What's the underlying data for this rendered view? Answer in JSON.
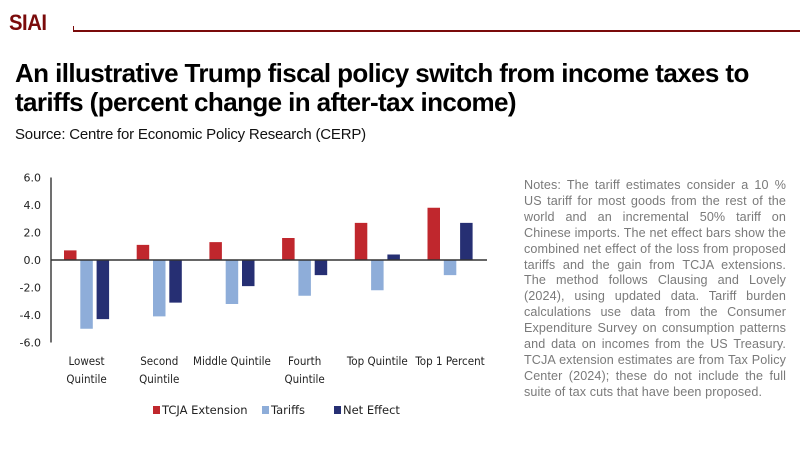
{
  "header": {
    "logo_text": "SIAI",
    "brand_color": "#7a0a0a"
  },
  "title": "An illustrative Trump fiscal policy switch from income taxes to tariffs (percent change in after-tax income)",
  "source": "Source: Centre for Economic Policy Research (CERP)",
  "notes": "Notes: The tariff estimates consider a 10 % US tariff for most goods from the rest of the world and an incremental 50% tariff on Chinese imports. The net effect bars show the combined net effect of the loss from proposed tariffs and the gain from TCJA extensions. The method follows Clausing and Lovely (2024), using updated data. Tariff burden calculations use data from the Consumer Expenditure Survey on consumption patterns and data on incomes from the US Treasury. TCJA extension estimates are from Tax Policy Center (2024); these do not include the full suite of tax cuts that have been proposed.",
  "chart_data": {
    "type": "bar",
    "title": "",
    "xlabel": "",
    "ylabel": "",
    "ylim": [
      -6.0,
      6.0
    ],
    "yticks": [
      "6.0",
      "4.0",
      "2.0",
      "0.0",
      "-2.0",
      "-4.0",
      "-6.0"
    ],
    "ytick_values": [
      6,
      4,
      2,
      0,
      -2,
      -4,
      -6
    ],
    "grid": false,
    "legend_position": "bottom",
    "categories": [
      [
        "Lowest",
        "Quintile"
      ],
      [
        "Second",
        "Quintile"
      ],
      [
        "Middle Quintile"
      ],
      [
        "Fourth",
        "Quintile"
      ],
      [
        "Top Quintile"
      ],
      [
        "Top 1 Percent"
      ]
    ],
    "series": [
      {
        "name": "TCJA Extension",
        "color": "#c0272d",
        "values": [
          0.7,
          1.1,
          1.3,
          1.6,
          2.7,
          3.8
        ]
      },
      {
        "name": "Tariffs",
        "color": "#8eadd9",
        "values": [
          -5.0,
          -4.1,
          -3.2,
          -2.6,
          -2.2,
          -1.1
        ]
      },
      {
        "name": "Net Effect",
        "color": "#262f73",
        "values": [
          -4.3,
          -3.1,
          -1.9,
          -1.1,
          0.4,
          2.7
        ]
      }
    ]
  }
}
